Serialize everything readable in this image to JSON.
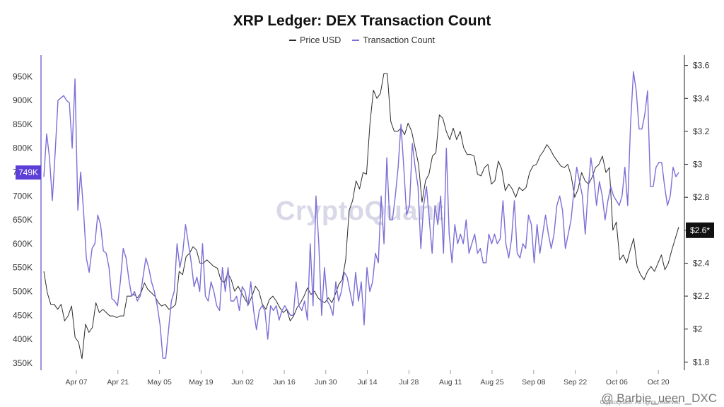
{
  "chart_data": {
    "type": "line",
    "title": "XRP Ledger: DEX Transaction Count",
    "x_tick_labels": [
      "Apr 07",
      "Apr 21",
      "May 05",
      "May 19",
      "Jun 02",
      "Jun 16",
      "Jun 30",
      "Jul 14",
      "Jul 28",
      "Aug 11",
      "Aug 25",
      "Sep 08",
      "Sep 22",
      "Oct 06",
      "Oct 20"
    ],
    "y_left": {
      "ticks": [
        "350K",
        "400K",
        "450K",
        "500K",
        "550K",
        "600K",
        "650K",
        "700K",
        "750K",
        "800K",
        "850K",
        "900K",
        "950K"
      ],
      "range": [
        335000,
        980000
      ]
    },
    "y_right": {
      "ticks": [
        "$1.8",
        "$2",
        "$2.2",
        "$2.4",
        "$2.6",
        "$2.8",
        "$3",
        "$3.2",
        "$3.4",
        "$3.6"
      ],
      "range": [
        1.75,
        3.62
      ]
    },
    "current_values": {
      "transaction_count": "749K",
      "price": "$2.6*"
    },
    "colors": {
      "transaction_count": "#7b6fd6",
      "price": "#2b2b2b",
      "left_badge": "#5b3fd6",
      "right_badge": "#111111"
    },
    "series": [
      {
        "name": "Price USD",
        "axis": "right",
        "values": [
          2.35,
          2.22,
          2.15,
          2.15,
          2.12,
          2.15,
          2.05,
          2.08,
          2.14,
          1.95,
          1.92,
          1.82,
          2.03,
          1.98,
          2.01,
          2.16,
          2.1,
          2.12,
          2.1,
          2.08,
          2.08,
          2.07,
          2.08,
          2.08,
          2.2,
          2.2,
          2.21,
          2.19,
          2.22,
          2.28,
          2.24,
          2.22,
          2.2,
          2.16,
          2.14,
          2.15,
          2.12,
          2.13,
          2.15,
          2.35,
          2.33,
          2.44,
          2.46,
          2.5,
          2.48,
          2.4,
          2.4,
          2.42,
          2.4,
          2.38,
          2.37,
          2.3,
          2.28,
          2.34,
          2.3,
          2.23,
          2.26,
          2.22,
          2.18,
          2.15,
          2.2,
          2.26,
          2.23,
          2.15,
          2.12,
          2.18,
          2.2,
          2.17,
          2.13,
          2.1,
          2.12,
          2.05,
          2.08,
          2.13,
          2.16,
          2.2,
          2.25,
          2.21,
          2.23,
          2.19,
          2.17,
          2.16,
          2.19,
          2.16,
          2.21,
          2.27,
          2.3,
          2.42,
          2.72,
          2.78,
          2.9,
          2.85,
          2.95,
          2.94,
          3.25,
          3.45,
          3.4,
          3.43,
          3.55,
          3.55,
          3.26,
          3.2,
          3.2,
          3.22,
          3.18,
          3.25,
          3.2,
          3.1,
          3.0,
          2.77,
          2.9,
          2.94,
          3.05,
          3.07,
          3.3,
          3.28,
          3.2,
          3.15,
          3.22,
          3.15,
          3.2,
          3.1,
          3.06,
          3.06,
          3.05,
          2.94,
          2.93,
          2.98,
          3.0,
          2.88,
          2.9,
          3.02,
          2.97,
          2.84,
          2.88,
          2.85,
          2.8,
          2.86,
          2.84,
          2.86,
          2.95,
          2.99,
          3.0,
          3.05,
          3.08,
          3.12,
          3.09,
          3.05,
          3.02,
          2.99,
          2.98,
          3.0,
          2.93,
          2.8,
          2.85,
          2.95,
          2.9,
          2.88,
          2.92,
          2.98,
          3.0,
          3.05,
          2.95,
          2.98,
          2.6,
          2.65,
          2.42,
          2.45,
          2.4,
          2.48,
          2.55,
          2.38,
          2.33,
          2.3,
          2.35,
          2.38,
          2.35,
          2.4,
          2.45,
          2.36,
          2.4,
          2.48,
          2.55,
          2.62
        ]
      },
      {
        "name": "Transaction Count",
        "axis": "left",
        "values": [
          740000,
          830000,
          780000,
          690000,
          790000,
          900000,
          905000,
          910000,
          900000,
          895000,
          800000,
          945000,
          670000,
          750000,
          670000,
          570000,
          540000,
          590000,
          600000,
          660000,
          640000,
          585000,
          580000,
          550000,
          485000,
          480000,
          470000,
          520000,
          590000,
          570000,
          525000,
          490000,
          500000,
          480000,
          490000,
          530000,
          570000,
          550000,
          520000,
          500000,
          470000,
          430000,
          360000,
          360000,
          420000,
          480000,
          500000,
          600000,
          550000,
          580000,
          640000,
          600000,
          560000,
          510000,
          530000,
          500000,
          600000,
          490000,
          480000,
          520000,
          500000,
          470000,
          460000,
          550000,
          500000,
          550000,
          480000,
          480000,
          490000,
          460000,
          510000,
          500000,
          470000,
          520000,
          460000,
          420000,
          460000,
          470000,
          460000,
          400000,
          470000,
          460000,
          470000,
          440000,
          460000,
          470000,
          460000,
          450000,
          450000,
          520000,
          470000,
          460000,
          480000,
          440000,
          600000,
          470000,
          700000,
          600000,
          450000,
          550000,
          480000,
          470000,
          450000,
          520000,
          480000,
          500000,
          540000,
          530000,
          500000,
          470000,
          540000,
          480000,
          520000,
          430000,
          550000,
          500000,
          520000,
          580000,
          560000,
          700000,
          600000,
          780000,
          650000,
          650000,
          700000,
          760000,
          850000,
          760000,
          660000,
          680000,
          810000,
          760000,
          720000,
          590000,
          680000,
          720000,
          650000,
          580000,
          680000,
          640000,
          700000,
          580000,
          800000,
          620000,
          560000,
          640000,
          600000,
          620000,
          600000,
          650000,
          580000,
          600000,
          620000,
          580000,
          590000,
          560000,
          560000,
          620000,
          600000,
          620000,
          600000,
          610000,
          690000,
          600000,
          570000,
          610000,
          690000,
          580000,
          570000,
          600000,
          590000,
          660000,
          640000,
          560000,
          640000,
          580000,
          620000,
          660000,
          620000,
          590000,
          620000,
          680000,
          700000,
          670000,
          590000,
          620000,
          650000,
          710000,
          760000,
          730000,
          700000,
          620000,
          710000,
          780000,
          740000,
          680000,
          730000,
          700000,
          650000,
          690000,
          720000,
          700000,
          690000,
          680000,
          700000,
          760000,
          680000,
          850000,
          960000,
          920000,
          840000,
          840000,
          870000,
          920000,
          720000,
          720000,
          760000,
          770000,
          770000,
          720000,
          680000,
          700000,
          760000,
          740000,
          749000
        ]
      }
    ]
  },
  "legend": [
    {
      "label": "Price USD",
      "color": "#2b2b2b"
    },
    {
      "label": "Transaction Count",
      "color": "#7b6fd6"
    }
  ],
  "watermark": "CryptoQuant",
  "copyright": "CryptoQuant. All rights reserved",
  "footer_tag": "@ Barbie_ueen_DXC"
}
